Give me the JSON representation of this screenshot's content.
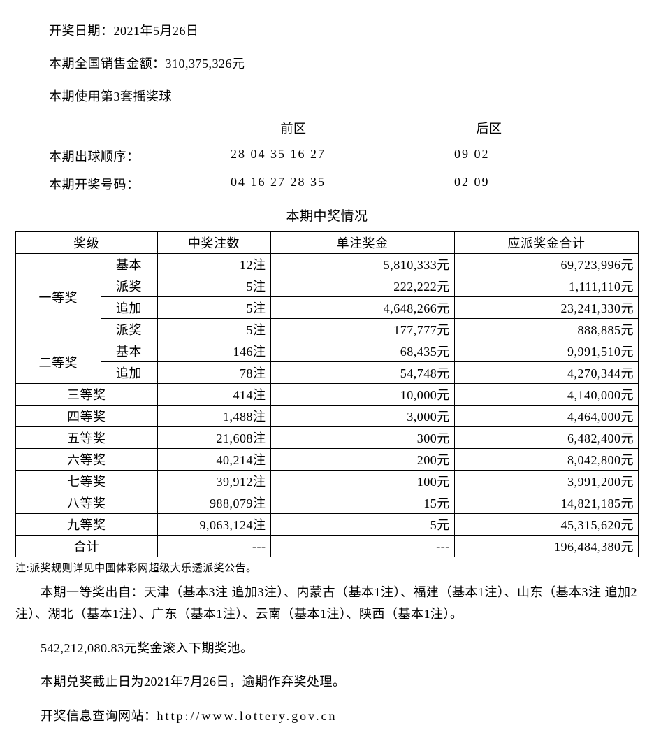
{
  "header": {
    "draw_date_label": "开奖日期：",
    "draw_date_value": "2021年5月26日",
    "sales_label": "本期全国销售金额：",
    "sales_value": "310,375,326元",
    "ball_set": "本期使用第3套摇奖球"
  },
  "numbers": {
    "front_label": "前区",
    "back_label": "后区",
    "draw_order_label": "本期出球顺序：",
    "draw_order_front": "28 04 35 16 27",
    "draw_order_back": "09 02",
    "winning_label": "本期开奖号码：",
    "winning_front": "04 16 27 28 35",
    "winning_back": "02 09"
  },
  "table": {
    "title": "本期中奖情况",
    "columns": {
      "level": "奖级",
      "count": "中奖注数",
      "unit_prize": "单注奖金",
      "total_prize": "应派奖金合计"
    },
    "col_widths": {
      "level_a": 120,
      "level_b": 80,
      "count": 160,
      "unit": 240,
      "total": 240
    },
    "rows": [
      {
        "level_a": "一等奖",
        "level_b": "基本",
        "count": "12注",
        "unit": "5,810,333元",
        "total": "69,723,996元",
        "rowspan_a": 4
      },
      {
        "level_b": "派奖",
        "count": "5注",
        "unit": "222,222元",
        "total": "1,111,110元"
      },
      {
        "level_b": "追加",
        "count": "5注",
        "unit": "4,648,266元",
        "total": "23,241,330元"
      },
      {
        "level_b": "派奖",
        "count": "5注",
        "unit": "177,777元",
        "total": "888,885元"
      },
      {
        "level_a": "二等奖",
        "level_b": "基本",
        "count": "146注",
        "unit": "68,435元",
        "total": "9,991,510元",
        "rowspan_a": 2
      },
      {
        "level_b": "追加",
        "count": "78注",
        "unit": "54,748元",
        "total": "4,270,344元"
      },
      {
        "level_merged": "三等奖",
        "count": "414注",
        "unit": "10,000元",
        "total": "4,140,000元"
      },
      {
        "level_merged": "四等奖",
        "count": "1,488注",
        "unit": "3,000元",
        "total": "4,464,000元"
      },
      {
        "level_merged": "五等奖",
        "count": "21,608注",
        "unit": "300元",
        "total": "6,482,400元"
      },
      {
        "level_merged": "六等奖",
        "count": "40,214注",
        "unit": "200元",
        "total": "8,042,800元"
      },
      {
        "level_merged": "七等奖",
        "count": "39,912注",
        "unit": "100元",
        "total": "3,991,200元"
      },
      {
        "level_merged": "八等奖",
        "count": "988,079注",
        "unit": "15元",
        "total": "14,821,185元"
      },
      {
        "level_merged": "九等奖",
        "count": "9,063,124注",
        "unit": "5元",
        "total": "45,315,620元"
      },
      {
        "level_merged": "合计",
        "count": "---",
        "unit": "---",
        "total": "196,484,380元"
      }
    ]
  },
  "footnote": "注:派奖规则详见中国体彩网超级大乐透派奖公告。",
  "winners_text": "本期一等奖出自：天津（基本3注 追加3注）、内蒙古（基本1注）、福建（基本1注）、山东（基本3注 追加2注）、湖北（基本1注）、广东（基本1注）、云南（基本1注）、陕西（基本1注）。",
  "rollover": "542,212,080.83元奖金滚入下期奖池。",
  "deadline": "本期兑奖截止日为2021年7月26日，逾期作弃奖处理。",
  "website_label": "开奖信息查询网站：",
  "website_url": "http://www.lottery.gov.cn",
  "style": {
    "border_color": "#000000",
    "background_color": "#ffffff",
    "text_color": "#000000",
    "body_fontsize": 18,
    "footnote_fontsize": 15
  }
}
